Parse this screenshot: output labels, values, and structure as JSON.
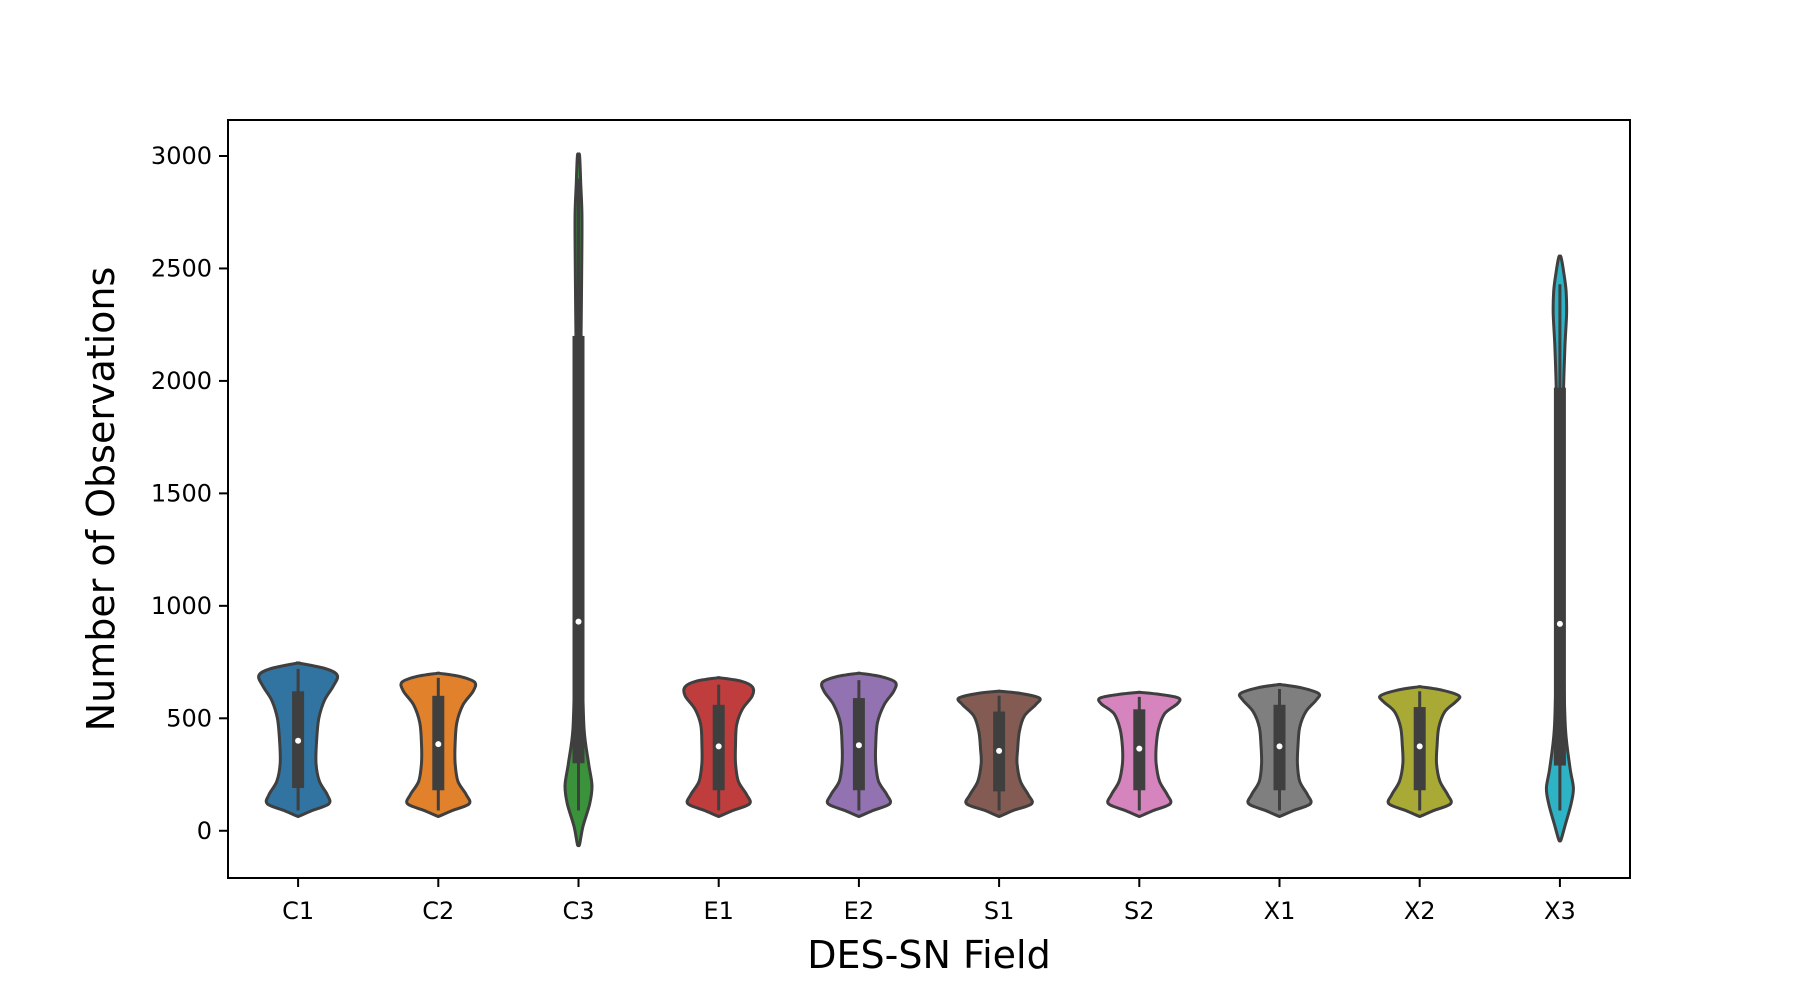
{
  "chart_data": {
    "type": "violin",
    "xlabel": "DES-SN Field",
    "ylabel": "Number of Observations",
    "ylim": [
      -210,
      3160
    ],
    "yticks": [
      0,
      500,
      1000,
      1500,
      2000,
      2500,
      3000
    ],
    "grid": false,
    "categories": [
      "C1",
      "C2",
      "C3",
      "E1",
      "E2",
      "S1",
      "S2",
      "X1",
      "X2",
      "X3"
    ],
    "series": [
      {
        "category": "C1",
        "color": "#3274a1",
        "min": 65,
        "max": 745,
        "q1": 190,
        "median": 400,
        "q3": 620,
        "whisker_low": 90,
        "whisker_high": 720,
        "density": [
          [
            65,
            0.02
          ],
          [
            90,
            0.25
          ],
          [
            120,
            0.55
          ],
          [
            160,
            0.52
          ],
          [
            220,
            0.38
          ],
          [
            300,
            0.32
          ],
          [
            400,
            0.33
          ],
          [
            500,
            0.37
          ],
          [
            580,
            0.47
          ],
          [
            640,
            0.62
          ],
          [
            690,
            0.7
          ],
          [
            720,
            0.5
          ],
          [
            745,
            0.02
          ]
        ]
      },
      {
        "category": "C2",
        "color": "#e1812c",
        "min": 65,
        "max": 700,
        "q1": 180,
        "median": 385,
        "q3": 600,
        "whisker_low": 90,
        "whisker_high": 680,
        "density": [
          [
            65,
            0.02
          ],
          [
            90,
            0.25
          ],
          [
            120,
            0.55
          ],
          [
            160,
            0.5
          ],
          [
            220,
            0.35
          ],
          [
            300,
            0.3
          ],
          [
            385,
            0.3
          ],
          [
            480,
            0.33
          ],
          [
            560,
            0.44
          ],
          [
            620,
            0.62
          ],
          [
            660,
            0.65
          ],
          [
            685,
            0.4
          ],
          [
            700,
            0.02
          ]
        ]
      },
      {
        "category": "C3",
        "color": "#3a923a",
        "min": -60,
        "max": 3000,
        "q1": 300,
        "median": 930,
        "q3": 2200,
        "whisker_low": 90,
        "whisker_high": 2900,
        "density": [
          [
            -60,
            0.02
          ],
          [
            20,
            0.08
          ],
          [
            120,
            0.2
          ],
          [
            200,
            0.24
          ],
          [
            300,
            0.18
          ],
          [
            450,
            0.1
          ],
          [
            700,
            0.07
          ],
          [
            1000,
            0.05
          ],
          [
            1500,
            0.04
          ],
          [
            2000,
            0.04
          ],
          [
            2300,
            0.05
          ],
          [
            2600,
            0.06
          ],
          [
            2750,
            0.06
          ],
          [
            2880,
            0.04
          ],
          [
            3000,
            0.02
          ]
        ]
      },
      {
        "category": "E1",
        "color": "#c03d3e",
        "min": 65,
        "max": 680,
        "q1": 180,
        "median": 375,
        "q3": 560,
        "whisker_low": 90,
        "whisker_high": 650,
        "density": [
          [
            65,
            0.02
          ],
          [
            90,
            0.25
          ],
          [
            120,
            0.55
          ],
          [
            160,
            0.5
          ],
          [
            220,
            0.35
          ],
          [
            300,
            0.3
          ],
          [
            380,
            0.3
          ],
          [
            470,
            0.32
          ],
          [
            540,
            0.42
          ],
          [
            600,
            0.6
          ],
          [
            640,
            0.6
          ],
          [
            665,
            0.4
          ],
          [
            680,
            0.02
          ]
        ]
      },
      {
        "category": "E2",
        "color": "#9372b2",
        "min": 65,
        "max": 700,
        "q1": 180,
        "median": 380,
        "q3": 590,
        "whisker_low": 90,
        "whisker_high": 670,
        "density": [
          [
            65,
            0.02
          ],
          [
            90,
            0.25
          ],
          [
            120,
            0.55
          ],
          [
            160,
            0.5
          ],
          [
            220,
            0.35
          ],
          [
            300,
            0.3
          ],
          [
            380,
            0.3
          ],
          [
            480,
            0.33
          ],
          [
            560,
            0.45
          ],
          [
            620,
            0.62
          ],
          [
            660,
            0.65
          ],
          [
            685,
            0.4
          ],
          [
            700,
            0.02
          ]
        ]
      },
      {
        "category": "S1",
        "color": "#845b53",
        "min": 65,
        "max": 620,
        "q1": 175,
        "median": 355,
        "q3": 530,
        "whisker_low": 90,
        "whisker_high": 600,
        "density": [
          [
            65,
            0.02
          ],
          [
            90,
            0.25
          ],
          [
            120,
            0.58
          ],
          [
            160,
            0.52
          ],
          [
            220,
            0.38
          ],
          [
            300,
            0.32
          ],
          [
            360,
            0.33
          ],
          [
            440,
            0.36
          ],
          [
            510,
            0.45
          ],
          [
            560,
            0.65
          ],
          [
            590,
            0.72
          ],
          [
            610,
            0.4
          ],
          [
            620,
            0.02
          ]
        ]
      },
      {
        "category": "S2",
        "color": "#d684bd",
        "min": 65,
        "max": 615,
        "q1": 180,
        "median": 365,
        "q3": 540,
        "whisker_low": 90,
        "whisker_high": 595,
        "density": [
          [
            65,
            0.02
          ],
          [
            90,
            0.25
          ],
          [
            120,
            0.55
          ],
          [
            160,
            0.5
          ],
          [
            220,
            0.36
          ],
          [
            300,
            0.3
          ],
          [
            370,
            0.3
          ],
          [
            450,
            0.34
          ],
          [
            520,
            0.45
          ],
          [
            565,
            0.68
          ],
          [
            590,
            0.7
          ],
          [
            605,
            0.4
          ],
          [
            615,
            0.02
          ]
        ]
      },
      {
        "category": "X1",
        "color": "#7f7f7f",
        "min": 65,
        "max": 650,
        "q1": 180,
        "median": 375,
        "q3": 560,
        "whisker_low": 90,
        "whisker_high": 630,
        "density": [
          [
            65,
            0.02
          ],
          [
            90,
            0.25
          ],
          [
            120,
            0.55
          ],
          [
            160,
            0.5
          ],
          [
            220,
            0.36
          ],
          [
            300,
            0.32
          ],
          [
            380,
            0.33
          ],
          [
            460,
            0.36
          ],
          [
            530,
            0.47
          ],
          [
            580,
            0.65
          ],
          [
            610,
            0.7
          ],
          [
            635,
            0.4
          ],
          [
            650,
            0.02
          ]
        ]
      },
      {
        "category": "X2",
        "color": "#a9aa35",
        "min": 65,
        "max": 640,
        "q1": 180,
        "median": 375,
        "q3": 550,
        "whisker_low": 90,
        "whisker_high": 620,
        "density": [
          [
            65,
            0.02
          ],
          [
            90,
            0.25
          ],
          [
            120,
            0.55
          ],
          [
            160,
            0.5
          ],
          [
            220,
            0.36
          ],
          [
            300,
            0.3
          ],
          [
            380,
            0.31
          ],
          [
            460,
            0.34
          ],
          [
            530,
            0.45
          ],
          [
            575,
            0.65
          ],
          [
            600,
            0.7
          ],
          [
            625,
            0.4
          ],
          [
            640,
            0.02
          ]
        ]
      },
      {
        "category": "X3",
        "color": "#2eb2c6",
        "min": -40,
        "max": 2550,
        "q1": 290,
        "median": 920,
        "q3": 1970,
        "whisker_low": 90,
        "whisker_high": 2430,
        "density": [
          [
            -40,
            0.02
          ],
          [
            30,
            0.1
          ],
          [
            120,
            0.2
          ],
          [
            190,
            0.24
          ],
          [
            280,
            0.18
          ],
          [
            450,
            0.1
          ],
          [
            700,
            0.07
          ],
          [
            1000,
            0.05
          ],
          [
            1500,
            0.05
          ],
          [
            1900,
            0.06
          ],
          [
            2150,
            0.09
          ],
          [
            2300,
            0.12
          ],
          [
            2400,
            0.11
          ],
          [
            2480,
            0.07
          ],
          [
            2550,
            0.02
          ]
        ]
      }
    ]
  }
}
